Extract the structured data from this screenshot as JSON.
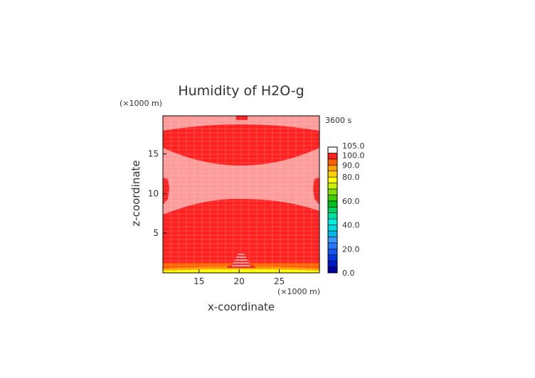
{
  "chart_data": {
    "type": "heatmap",
    "title": "Humidity of H2O-g",
    "time_label": "3600 s",
    "xlabel": "x-coordinate",
    "ylabel": "z-coordinate",
    "x_unit": "(×1000 m)",
    "y_unit": "(×1000 m)",
    "xlim": [
      10.5,
      30
    ],
    "ylim": [
      0,
      19.8
    ],
    "x_ticks": [
      15,
      20,
      25
    ],
    "y_ticks": [
      5,
      10,
      15
    ],
    "colorbar": {
      "ticks": [
        0.0,
        20.0,
        40.0,
        60.0,
        80.0,
        90.0,
        100.0,
        105.0
      ],
      "tick_labels": [
        "0.0",
        "20.0",
        "40.0",
        "60.0",
        "80.0",
        "90.0",
        "100.0",
        "105.0"
      ],
      "levels": [
        0,
        5,
        10,
        15,
        20,
        25,
        30,
        35,
        40,
        45,
        50,
        55,
        60,
        65,
        70,
        75,
        80,
        85,
        90,
        95,
        100,
        105
      ],
      "colors": [
        "#0000a0",
        "#0018c8",
        "#0038e0",
        "#1058f0",
        "#2878ff",
        "#3898ff",
        "#00b8e8",
        "#00d8e0",
        "#00f0e0",
        "#00e0a0",
        "#00d060",
        "#00c020",
        "#40d000",
        "#80e000",
        "#c8f000",
        "#ffff00",
        "#ffd000",
        "#ffa000",
        "#ff6000",
        "#ff2020",
        "#ffffff"
      ]
    },
    "regions_note_values": {
      "saturated": 100.0,
      "subsaturated": 96.0,
      "surface_low": 82.0,
      "surface_mid": 88.0
    }
  }
}
